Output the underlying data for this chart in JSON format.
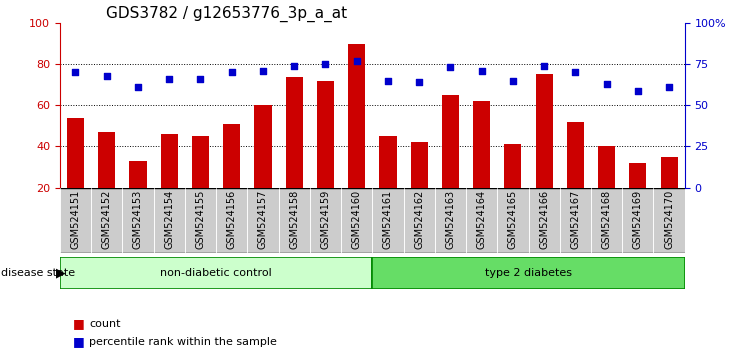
{
  "title": "GDS3782 / g12653776_3p_a_at",
  "samples": [
    "GSM524151",
    "GSM524152",
    "GSM524153",
    "GSM524154",
    "GSM524155",
    "GSM524156",
    "GSM524157",
    "GSM524158",
    "GSM524159",
    "GSM524160",
    "GSM524161",
    "GSM524162",
    "GSM524163",
    "GSM524164",
    "GSM524165",
    "GSM524166",
    "GSM524167",
    "GSM524168",
    "GSM524169",
    "GSM524170"
  ],
  "bar_values": [
    54,
    47,
    33,
    46,
    45,
    51,
    60,
    74,
    72,
    90,
    45,
    42,
    65,
    62,
    41,
    75,
    52,
    40,
    32,
    35
  ],
  "dot_values": [
    70,
    68,
    61,
    66,
    66,
    70,
    71,
    74,
    75,
    77,
    65,
    64,
    73,
    71,
    65,
    74,
    70,
    63,
    59,
    61
  ],
  "bar_color": "#cc0000",
  "dot_color": "#0000cc",
  "ylim_left": [
    20,
    100
  ],
  "ylim_right": [
    0,
    100
  ],
  "right_ticks": [
    0,
    25,
    50,
    75,
    100
  ],
  "right_tick_labels": [
    "0",
    "25",
    "50",
    "75",
    "100%"
  ],
  "left_ticks": [
    20,
    40,
    60,
    80,
    100
  ],
  "grid_values": [
    40,
    60,
    80
  ],
  "group1_label": "non-diabetic control",
  "group2_label": "type 2 diabetes",
  "group1_count": 10,
  "group2_count": 10,
  "disease_state_label": "disease state",
  "legend_count_label": "count",
  "legend_pct_label": "percentile rank within the sample",
  "group1_color": "#ccffcc",
  "group2_color": "#66dd66",
  "separator_color": "#008800",
  "xtick_bg_color": "#cccccc",
  "title_fontsize": 11,
  "tick_fontsize": 7,
  "label_fontsize": 8
}
